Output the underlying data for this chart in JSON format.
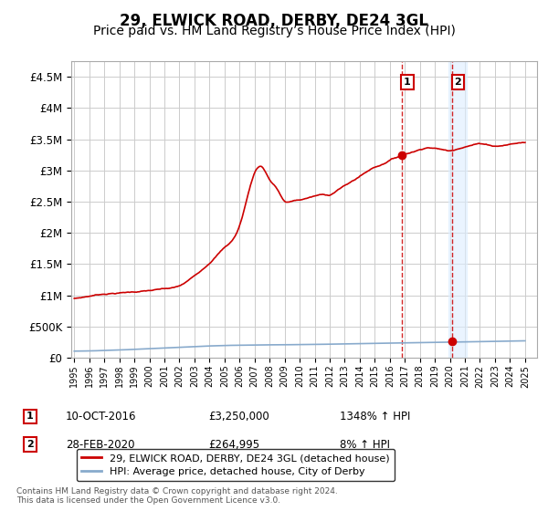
{
  "title": "29, ELWICK ROAD, DERBY, DE24 3GL",
  "subtitle": "Price paid vs. HM Land Registry’s House Price Index (HPI)",
  "title_fontsize": 12,
  "subtitle_fontsize": 10,
  "ylabel_ticks": [
    "£0",
    "£500K",
    "£1M",
    "£1.5M",
    "£2M",
    "£2.5M",
    "£3M",
    "£3.5M",
    "£4M",
    "£4.5M"
  ],
  "ytick_values": [
    0,
    500000,
    1000000,
    1500000,
    2000000,
    2500000,
    3000000,
    3500000,
    4000000,
    4500000
  ],
  "ylim": [
    0,
    4750000
  ],
  "xlim_start": 1994.8,
  "xlim_end": 2025.8,
  "hpi_color": "#cc0000",
  "avg_color": "#88aacc",
  "shade_color": "#ddeeff",
  "shade_alpha": 0.6,
  "shade_x_start": 2019.9,
  "shade_x_end": 2021.1,
  "point1_x": 2016.78,
  "point1_y": 3250000,
  "point2_x": 2020.15,
  "point2_y": 264995,
  "dashed_x1": 2016.78,
  "dashed_x2": 2020.15,
  "legend_line1": "29, ELWICK ROAD, DERBY, DE24 3GL (detached house)",
  "legend_line2": "HPI: Average price, detached house, City of Derby",
  "ann1_label": "1",
  "ann2_label": "2",
  "table_row1": [
    "1",
    "10-OCT-2016",
    "£3,250,000",
    "1348% ↑ HPI"
  ],
  "table_row2": [
    "2",
    "28-FEB-2020",
    "£264,995",
    "8% ↑ HPI"
  ],
  "footnote": "Contains HM Land Registry data © Crown copyright and database right 2024.\nThis data is licensed under the Open Government Licence v3.0.",
  "background_color": "#ffffff",
  "grid_color": "#cccccc",
  "hpi_keypoints_x": [
    1995,
    1996,
    1997,
    1998,
    1999,
    2000,
    2001,
    2002,
    2003,
    2004,
    2005,
    2006,
    2007,
    2007.5,
    2008,
    2008.5,
    2009,
    2009.5,
    2010,
    2010.5,
    2011,
    2011.5,
    2012,
    2012.5,
    2013,
    2013.5,
    2014,
    2014.5,
    2015,
    2015.5,
    2016,
    2016.5,
    2016.78,
    2017,
    2017.5,
    2018,
    2018.5,
    2019,
    2019.5,
    2020,
    2020.5,
    2021,
    2021.5,
    2022,
    2022.5,
    2023,
    2023.5,
    2024,
    2024.5,
    2025
  ],
  "hpi_keypoints_y": [
    920000,
    960000,
    1000000,
    1020000,
    1040000,
    1060000,
    1080000,
    1120000,
    1280000,
    1500000,
    1750000,
    2100000,
    2950000,
    3050000,
    2850000,
    2700000,
    2500000,
    2500000,
    2520000,
    2550000,
    2580000,
    2600000,
    2600000,
    2680000,
    2750000,
    2820000,
    2900000,
    2980000,
    3050000,
    3100000,
    3170000,
    3220000,
    3250000,
    3270000,
    3310000,
    3350000,
    3390000,
    3380000,
    3360000,
    3340000,
    3380000,
    3420000,
    3450000,
    3470000,
    3460000,
    3440000,
    3450000,
    3470000,
    3490000,
    3500000
  ],
  "avg_keypoints_x": [
    1995,
    2000,
    2005,
    2010,
    2015,
    2020,
    2025
  ],
  "avg_keypoints_y": [
    105000,
    145000,
    195000,
    210000,
    230000,
    250000,
    270000
  ]
}
